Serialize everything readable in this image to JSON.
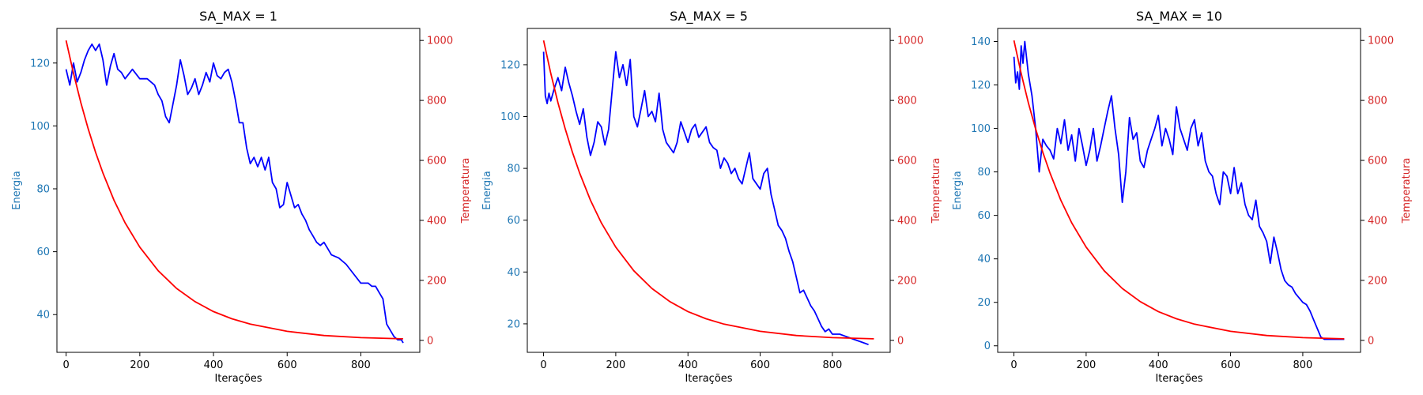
{
  "colors": {
    "energy_line": "#0000ff",
    "temperature_line": "#ff0000",
    "energy_axis_text": "#1f77b4",
    "temperature_axis_text": "#d62728",
    "axes": "#000000"
  },
  "chart_data": [
    {
      "type": "line",
      "title": "SA_MAX = 1",
      "xlabel": "Iterações",
      "ylabel": "Energia",
      "ylabel_right": "Temperatura",
      "xlim": [
        -25,
        960
      ],
      "ylim": [
        28,
        131
      ],
      "ylim_right": [
        -40,
        1040
      ],
      "xticks": [
        0,
        200,
        400,
        600,
        800
      ],
      "yticks": [
        40,
        60,
        80,
        100,
        120
      ],
      "yticks_right": [
        0,
        200,
        400,
        600,
        800,
        1000
      ],
      "grid": false,
      "series": [
        {
          "axis": "left",
          "x": [
            0,
            10,
            20,
            30,
            40,
            50,
            60,
            70,
            80,
            90,
            100,
            110,
            120,
            130,
            140,
            150,
            160,
            180,
            200,
            220,
            240,
            250,
            260,
            270,
            280,
            290,
            300,
            310,
            320,
            330,
            340,
            350,
            360,
            370,
            380,
            390,
            400,
            410,
            420,
            430,
            440,
            450,
            460,
            470,
            480,
            490,
            500,
            510,
            520,
            530,
            540,
            550,
            560,
            570,
            580,
            590,
            600,
            610,
            620,
            630,
            640,
            650,
            660,
            670,
            680,
            690,
            700,
            710,
            720,
            740,
            760,
            780,
            800,
            820,
            830,
            840,
            850,
            860,
            870,
            880,
            890,
            900,
            910,
            915
          ],
          "values": [
            118,
            113,
            120,
            114,
            117,
            121,
            124,
            126,
            124,
            126,
            121,
            113,
            119,
            123,
            118,
            117,
            115,
            118,
            115,
            115,
            113,
            110,
            108,
            103,
            101,
            107,
            113,
            121,
            116,
            110,
            112,
            115,
            110,
            113,
            117,
            114,
            120,
            116,
            115,
            117,
            118,
            114,
            108,
            101,
            101,
            93,
            88,
            90,
            87,
            90,
            86,
            90,
            82,
            80,
            74,
            75,
            82,
            78,
            74,
            75,
            72,
            70,
            67,
            65,
            63,
            62,
            63,
            61,
            59,
            58,
            56,
            53,
            50,
            50,
            49,
            49,
            47,
            45,
            37,
            35,
            33,
            32,
            32,
            31
          ]
        },
        {
          "axis": "right",
          "x": [
            0,
            20,
            40,
            60,
            80,
            100,
            130,
            160,
            200,
            250,
            300,
            350,
            400,
            450,
            500,
            600,
            700,
            800,
            915
          ],
          "values": [
            1000,
            890,
            792,
            705,
            627,
            558,
            467,
            392,
            311,
            232,
            173,
            129,
            96,
            72,
            54,
            30,
            16,
            9,
            5
          ]
        }
      ]
    },
    {
      "type": "line",
      "title": "SA_MAX = 5",
      "xlabel": "Iterações",
      "ylabel": "Energia",
      "ylabel_right": "Temperatura",
      "xlim": [
        -45,
        960
      ],
      "ylim": [
        9,
        134
      ],
      "ylim_right": [
        -40,
        1040
      ],
      "xticks": [
        0,
        200,
        400,
        600,
        800
      ],
      "yticks": [
        20,
        40,
        60,
        80,
        100,
        120
      ],
      "yticks_right": [
        0,
        200,
        400,
        600,
        800,
        1000
      ],
      "grid": false,
      "series": [
        {
          "axis": "left",
          "x": [
            0,
            5,
            10,
            15,
            20,
            30,
            40,
            50,
            60,
            70,
            80,
            90,
            100,
            110,
            120,
            130,
            140,
            150,
            160,
            170,
            180,
            190,
            200,
            210,
            220,
            230,
            240,
            250,
            260,
            270,
            280,
            290,
            300,
            310,
            320,
            330,
            340,
            350,
            360,
            370,
            380,
            390,
            400,
            410,
            420,
            430,
            440,
            450,
            460,
            470,
            480,
            490,
            500,
            510,
            520,
            530,
            540,
            550,
            560,
            570,
            580,
            590,
            600,
            610,
            620,
            630,
            640,
            650,
            660,
            670,
            680,
            690,
            700,
            710,
            720,
            730,
            740,
            750,
            760,
            770,
            780,
            790,
            800,
            820,
            840,
            860,
            880,
            900
          ],
          "values": [
            125,
            108,
            105,
            109,
            106,
            111,
            115,
            110,
            119,
            113,
            108,
            102,
            97,
            103,
            92,
            85,
            90,
            98,
            96,
            89,
            95,
            110,
            125,
            115,
            120,
            112,
            122,
            100,
            96,
            103,
            110,
            100,
            102,
            98,
            109,
            95,
            90,
            88,
            86,
            90,
            98,
            94,
            90,
            95,
            97,
            92,
            94,
            96,
            90,
            88,
            87,
            80,
            84,
            82,
            78,
            80,
            76,
            74,
            80,
            86,
            76,
            74,
            72,
            78,
            80,
            70,
            64,
            58,
            56,
            53,
            48,
            44,
            38,
            32,
            33,
            30,
            27,
            25,
            22,
            19,
            17,
            18,
            16,
            16,
            15,
            14,
            13,
            12
          ]
        },
        {
          "axis": "right",
          "x": [
            0,
            20,
            40,
            60,
            80,
            100,
            130,
            160,
            200,
            250,
            300,
            350,
            400,
            450,
            500,
            600,
            700,
            800,
            915
          ],
          "values": [
            1000,
            890,
            792,
            705,
            627,
            558,
            467,
            392,
            311,
            232,
            173,
            129,
            96,
            72,
            54,
            30,
            16,
            9,
            5
          ]
        }
      ]
    },
    {
      "type": "line",
      "title": "SA_MAX = 10",
      "xlabel": "Iterações",
      "ylabel": "Energia",
      "ylabel_right": "Temperatura",
      "xlim": [
        -45,
        960
      ],
      "ylim": [
        -3,
        146
      ],
      "ylim_right": [
        -40,
        1040
      ],
      "xticks": [
        0,
        200,
        400,
        600,
        800
      ],
      "yticks": [
        0,
        20,
        40,
        60,
        80,
        100,
        120,
        140
      ],
      "yticks_right": [
        0,
        200,
        400,
        600,
        800,
        1000
      ],
      "grid": false,
      "series": [
        {
          "axis": "left",
          "x": [
            0,
            5,
            10,
            15,
            20,
            25,
            30,
            40,
            50,
            60,
            70,
            80,
            90,
            100,
            110,
            120,
            130,
            140,
            150,
            160,
            170,
            180,
            190,
            200,
            210,
            220,
            230,
            240,
            250,
            260,
            270,
            280,
            290,
            300,
            310,
            320,
            330,
            340,
            350,
            360,
            370,
            380,
            390,
            400,
            410,
            420,
            430,
            440,
            450,
            460,
            470,
            480,
            490,
            500,
            510,
            520,
            530,
            540,
            550,
            560,
            570,
            580,
            590,
            600,
            610,
            620,
            630,
            640,
            650,
            660,
            670,
            680,
            690,
            700,
            710,
            720,
            730,
            740,
            750,
            760,
            770,
            780,
            790,
            800,
            810,
            820,
            830,
            840,
            850,
            860,
            880,
            915
          ],
          "values": [
            133,
            121,
            126,
            118,
            138,
            130,
            140,
            125,
            115,
            100,
            80,
            95,
            92,
            90,
            86,
            100,
            93,
            104,
            90,
            97,
            85,
            100,
            92,
            83,
            90,
            100,
            85,
            92,
            100,
            108,
            115,
            100,
            88,
            66,
            80,
            105,
            95,
            98,
            85,
            82,
            90,
            95,
            100,
            106,
            92,
            100,
            95,
            88,
            110,
            100,
            95,
            90,
            100,
            104,
            92,
            98,
            85,
            80,
            78,
            70,
            65,
            80,
            78,
            70,
            82,
            70,
            75,
            65,
            60,
            58,
            67,
            55,
            52,
            48,
            38,
            50,
            43,
            35,
            30,
            28,
            27,
            24,
            22,
            20,
            19,
            16,
            12,
            8,
            4,
            3,
            3,
            3
          ]
        },
        {
          "axis": "right",
          "x": [
            0,
            20,
            40,
            60,
            80,
            100,
            130,
            160,
            200,
            250,
            300,
            350,
            400,
            450,
            500,
            600,
            700,
            800,
            915
          ],
          "values": [
            1000,
            890,
            792,
            705,
            627,
            558,
            467,
            392,
            311,
            232,
            173,
            129,
            96,
            72,
            54,
            30,
            16,
            9,
            5
          ]
        }
      ]
    }
  ]
}
